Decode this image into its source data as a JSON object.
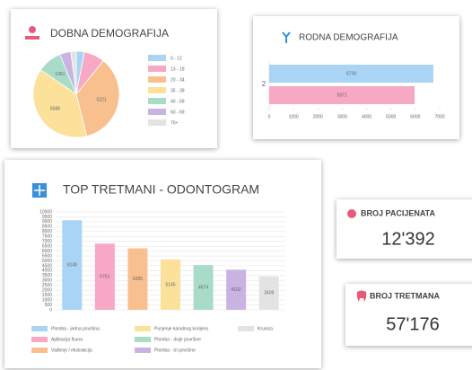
{
  "chart_data": [
    {
      "type": "pie",
      "title": "DOBNA DEMOGRAFIJA",
      "categories": [
        "0 - 12",
        "13 - 19",
        "20 - 34",
        "35 - 39",
        "40 - 59",
        "60 - 69",
        "70+"
      ],
      "values": [
        450,
        1150,
        5221,
        5688,
        1361,
        620,
        300
      ],
      "colors": [
        "#a9d4f5",
        "#f7a8c4",
        "#f9c08f",
        "#fbe19a",
        "#a8dcc8",
        "#c9b3e3",
        "#e3e3e3"
      ]
    },
    {
      "type": "hbar",
      "title": "RODNA DEMOGRAFIJA",
      "categories": [
        "2"
      ],
      "series": [
        {
          "color": "#a9d4f5",
          "values": [
            6738
          ]
        },
        {
          "color": "#f7a8c4",
          "values": [
            5971
          ]
        }
      ],
      "xlim": [
        0,
        7000
      ],
      "xticks": [
        0,
        1000,
        2000,
        3000,
        4000,
        5000,
        6000,
        7000
      ]
    },
    {
      "type": "bar",
      "title": "TOP TRETMANI - ODONTOGRAM",
      "categories": [
        "Plomba - jedna površina",
        "Aplikacija fluora",
        "Vađenje / ekstrakcija",
        "Punjenje kanalnog korijena",
        "Plomba - dvije površine",
        "Plomba - tri površine",
        "Krunica"
      ],
      "values": [
        9148,
        6761,
        6285,
        5145,
        4574,
        4102,
        3409
      ],
      "colors": [
        "#a9d4f5",
        "#f7a8c4",
        "#f9c08f",
        "#fbe19a",
        "#a8dcc8",
        "#c9b3e3",
        "#e3e3e3"
      ],
      "ylim": [
        0,
        10000
      ],
      "yticks": [
        0,
        500,
        1000,
        1500,
        2000,
        2500,
        3000,
        3500,
        4000,
        4500,
        5000,
        5500,
        6000,
        6500,
        7000,
        7500,
        8000,
        8500,
        9000,
        9500,
        10000
      ],
      "grid": true
    }
  ],
  "cards": [
    {
      "title": "BROJ PACIJENATA",
      "value": "12'392"
    },
    {
      "title": "BROJ TRETMANA",
      "value": "57'176"
    }
  ]
}
